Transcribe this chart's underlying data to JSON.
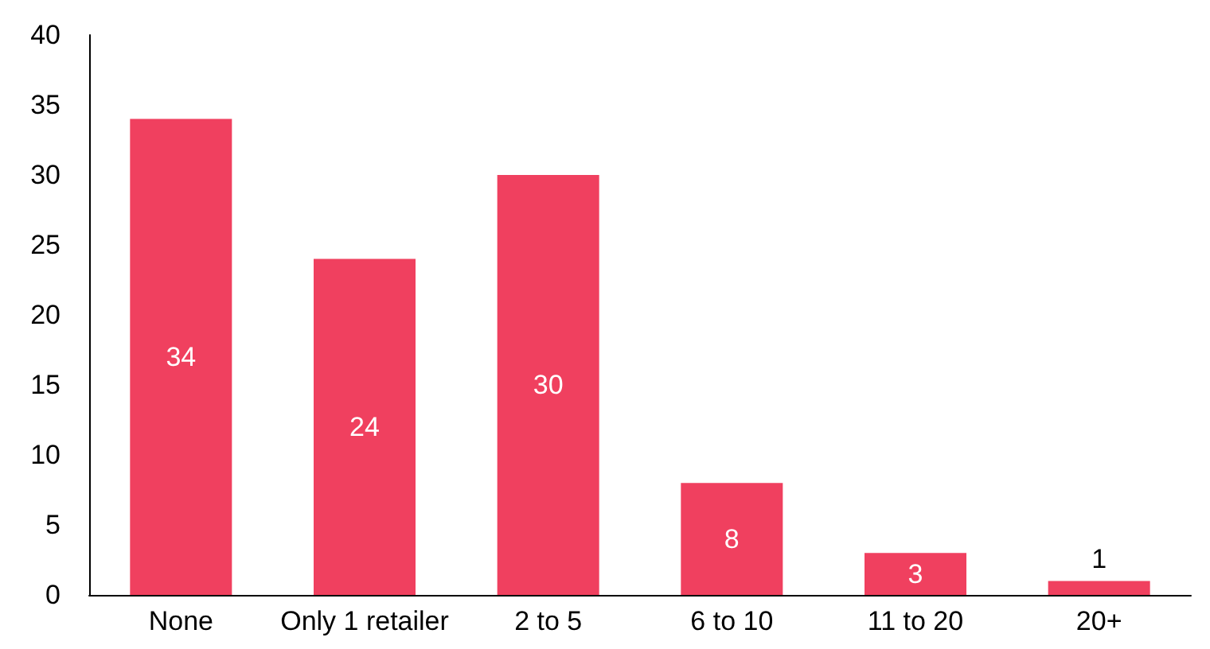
{
  "chart_data": {
    "type": "bar",
    "categories": [
      "None",
      "Only 1 retailer",
      "2 to 5",
      "6 to 10",
      "11 to 20",
      "20+"
    ],
    "values": [
      34,
      24,
      30,
      8,
      3,
      1
    ],
    "color": "#f0405f",
    "ylim": [
      0,
      40
    ],
    "yticks": [
      0,
      5,
      10,
      15,
      20,
      25,
      30,
      35,
      40
    ],
    "grid": false,
    "data_labels": true
  }
}
